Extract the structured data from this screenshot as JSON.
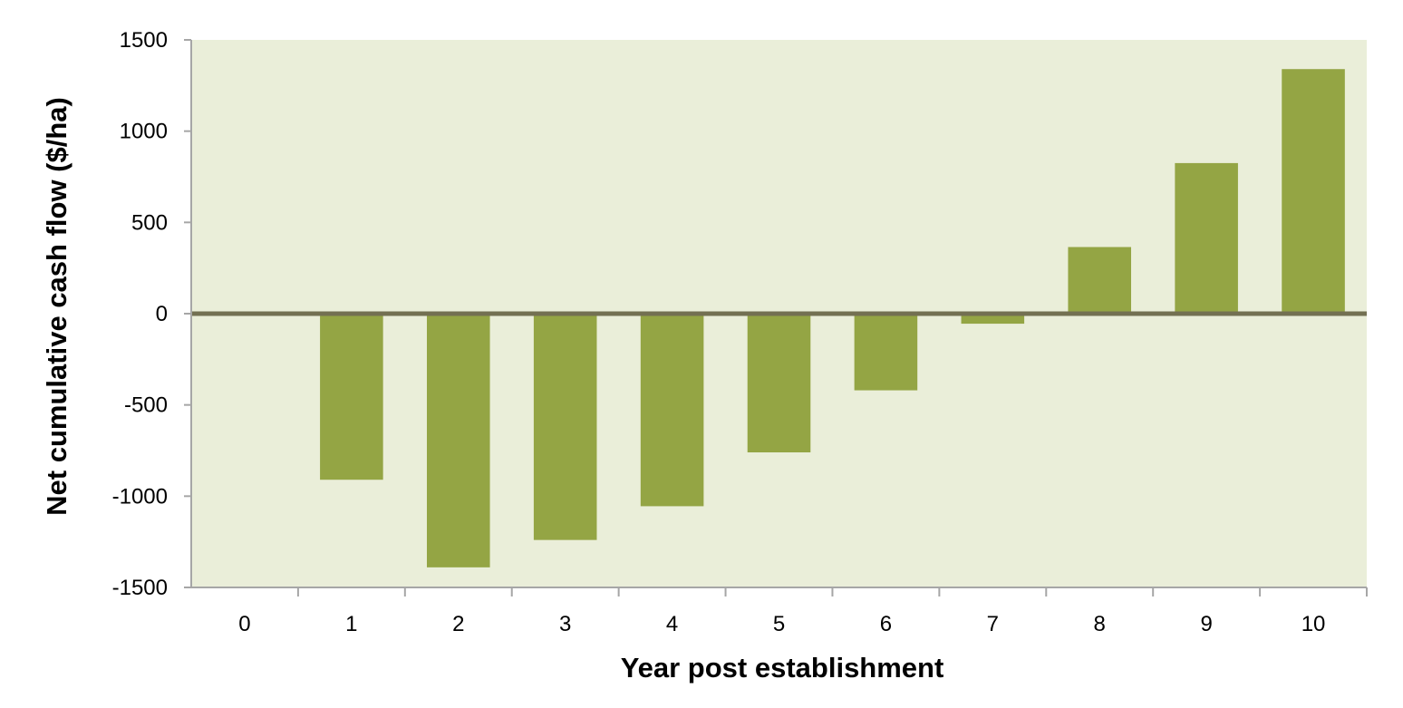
{
  "chart_data": {
    "type": "bar",
    "title": "",
    "xlabel": "Year post establishment",
    "ylabel": "Net cumulative cash flow ($/ha)",
    "categories": [
      "0",
      "1",
      "2",
      "3",
      "4",
      "5",
      "6",
      "7",
      "8",
      "9",
      "10"
    ],
    "values": [
      0,
      -910,
      -1390,
      -1240,
      -1055,
      -760,
      -420,
      -55,
      365,
      825,
      1340
    ],
    "ylim": [
      -1500,
      1500
    ],
    "yticks": [
      "1500",
      "1000",
      "500",
      "0",
      "-500",
      "-1000",
      "-1500"
    ],
    "grid": false,
    "legend": "none",
    "colors": {
      "bar": "#94a544",
      "plot_background": "#eaeed9",
      "zero_line": "#737052",
      "axis": "#a6a6a6"
    }
  }
}
